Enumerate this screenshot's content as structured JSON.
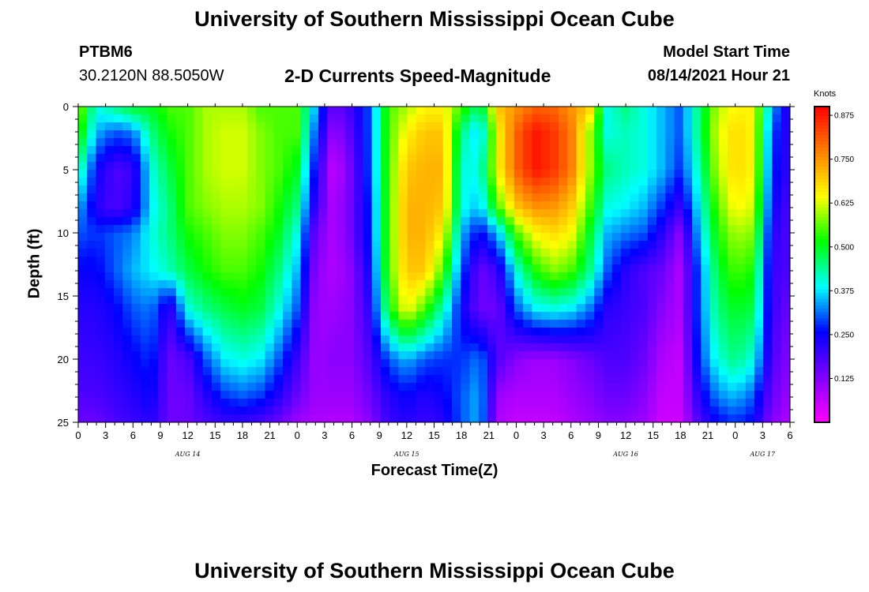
{
  "header": {
    "title": "University of Southern Mississippi Ocean Cube",
    "station_id": "PTBM6",
    "station_coords": "30.2120N  88.5050W",
    "plot_title": "2-D Currents Speed-Magnitude",
    "model_start_label": "Model Start Time",
    "model_start_value": "08/14/2021 Hour 21"
  },
  "footer": {
    "title": "University of Southern Mississippi Ocean Cube"
  },
  "chart_data": {
    "type": "heatmap",
    "xlabel": "Forecast Time(Z)",
    "ylabel": "Depth (ft)",
    "colorbar_label": "Knots",
    "x_ticks": [
      "0",
      "3",
      "6",
      "9",
      "12",
      "15",
      "18",
      "21",
      "0",
      "3",
      "6",
      "9",
      "12",
      "15",
      "18",
      "21",
      "0",
      "3",
      "6",
      "9",
      "12",
      "15",
      "18",
      "21",
      "0",
      "3",
      "6"
    ],
    "x_day_labels": [
      {
        "label": "AUG 14",
        "at_tick_index": 4
      },
      {
        "label": "AUG 15",
        "at_tick_index": 12
      },
      {
        "label": "AUG 16",
        "at_tick_index": 20
      },
      {
        "label": "AUG 17",
        "at_tick_index": 25
      }
    ],
    "y_ticks": [
      0,
      5,
      10,
      15,
      20,
      25
    ],
    "y_range": [
      0,
      25
    ],
    "y_inverted": true,
    "x_range_hours": [
      0,
      78
    ],
    "colorbar": {
      "min": 0,
      "max": 0.9,
      "ticks": [
        "0.125",
        "0.250",
        "0.375",
        "0.500",
        "0.625",
        "0.750",
        "0.875"
      ],
      "colormap": [
        "#ff00ff",
        "#8000ff",
        "#0000ff",
        "#00ffff",
        "#00ff00",
        "#ffff00",
        "#ff8000",
        "#ff0000"
      ]
    },
    "x_hours": [
      0,
      2,
      4,
      6,
      8,
      10,
      12,
      14,
      16,
      18,
      20,
      22,
      24,
      26,
      28,
      30,
      32,
      34,
      36,
      38,
      40,
      42,
      44,
      46,
      48,
      50,
      52,
      54,
      56,
      58,
      60,
      62,
      64,
      66,
      68,
      70,
      72,
      74,
      76,
      78
    ],
    "depths_ft": [
      0,
      2,
      5,
      8,
      10,
      13,
      16,
      20,
      23,
      25
    ],
    "values_knots": [
      [
        0.6,
        0.4,
        0.45,
        0.5,
        0.5,
        0.55,
        0.55,
        0.6,
        0.6,
        0.6,
        0.55,
        0.55,
        0.55,
        0.35,
        0.15,
        0.2,
        0.3,
        0.55,
        0.6,
        0.65,
        0.65,
        0.55,
        0.45,
        0.7,
        0.75,
        0.8,
        0.8,
        0.75,
        0.7,
        0.4,
        0.45,
        0.4,
        0.35,
        0.3,
        0.45,
        0.6,
        0.65,
        0.65,
        0.35,
        0.2
      ],
      [
        0.55,
        0.35,
        0.3,
        0.32,
        0.45,
        0.52,
        0.55,
        0.6,
        0.62,
        0.62,
        0.58,
        0.55,
        0.55,
        0.3,
        0.1,
        0.18,
        0.3,
        0.55,
        0.65,
        0.7,
        0.7,
        0.45,
        0.35,
        0.65,
        0.8,
        0.88,
        0.85,
        0.78,
        0.6,
        0.4,
        0.42,
        0.4,
        0.35,
        0.3,
        0.45,
        0.62,
        0.68,
        0.65,
        0.3,
        0.2
      ],
      [
        0.45,
        0.25,
        0.18,
        0.2,
        0.4,
        0.48,
        0.55,
        0.6,
        0.62,
        0.62,
        0.58,
        0.55,
        0.5,
        0.25,
        0.05,
        0.15,
        0.3,
        0.55,
        0.7,
        0.72,
        0.72,
        0.4,
        0.4,
        0.65,
        0.8,
        0.88,
        0.85,
        0.78,
        0.6,
        0.45,
        0.42,
        0.4,
        0.35,
        0.28,
        0.42,
        0.6,
        0.68,
        0.65,
        0.28,
        0.2
      ],
      [
        0.35,
        0.22,
        0.18,
        0.22,
        0.38,
        0.45,
        0.55,
        0.58,
        0.6,
        0.6,
        0.58,
        0.52,
        0.45,
        0.2,
        0.08,
        0.15,
        0.28,
        0.55,
        0.72,
        0.72,
        0.7,
        0.4,
        0.35,
        0.55,
        0.7,
        0.75,
        0.75,
        0.7,
        0.55,
        0.4,
        0.38,
        0.35,
        0.28,
        0.2,
        0.38,
        0.55,
        0.65,
        0.62,
        0.25,
        0.18
      ],
      [
        0.3,
        0.28,
        0.3,
        0.32,
        0.4,
        0.45,
        0.52,
        0.55,
        0.58,
        0.58,
        0.55,
        0.5,
        0.4,
        0.15,
        0.08,
        0.15,
        0.28,
        0.55,
        0.72,
        0.72,
        0.65,
        0.35,
        0.25,
        0.35,
        0.55,
        0.65,
        0.68,
        0.65,
        0.5,
        0.35,
        0.32,
        0.3,
        0.22,
        0.12,
        0.35,
        0.52,
        0.6,
        0.58,
        0.22,
        0.18
      ],
      [
        0.25,
        0.25,
        0.3,
        0.35,
        0.38,
        0.42,
        0.48,
        0.52,
        0.55,
        0.55,
        0.52,
        0.45,
        0.35,
        0.12,
        0.08,
        0.12,
        0.25,
        0.55,
        0.7,
        0.7,
        0.55,
        0.3,
        0.15,
        0.2,
        0.4,
        0.52,
        0.58,
        0.55,
        0.45,
        0.3,
        0.22,
        0.18,
        0.15,
        0.08,
        0.3,
        0.48,
        0.55,
        0.52,
        0.2,
        0.18
      ],
      [
        0.22,
        0.22,
        0.25,
        0.3,
        0.32,
        0.2,
        0.4,
        0.45,
        0.48,
        0.5,
        0.48,
        0.4,
        0.3,
        0.1,
        0.1,
        0.12,
        0.22,
        0.5,
        0.65,
        0.55,
        0.42,
        0.25,
        0.15,
        0.15,
        0.3,
        0.38,
        0.4,
        0.38,
        0.32,
        0.22,
        0.2,
        0.18,
        0.12,
        0.08,
        0.3,
        0.45,
        0.5,
        0.48,
        0.2,
        0.15
      ],
      [
        0.2,
        0.2,
        0.22,
        0.25,
        0.28,
        0.15,
        0.18,
        0.3,
        0.38,
        0.4,
        0.38,
        0.3,
        0.2,
        0.1,
        0.12,
        0.12,
        0.18,
        0.3,
        0.35,
        0.3,
        0.28,
        0.28,
        0.32,
        0.18,
        0.12,
        0.1,
        0.1,
        0.12,
        0.15,
        0.18,
        0.18,
        0.15,
        0.08,
        0.06,
        0.28,
        0.4,
        0.45,
        0.4,
        0.18,
        0.12
      ],
      [
        0.18,
        0.18,
        0.2,
        0.22,
        0.25,
        0.15,
        0.15,
        0.22,
        0.28,
        0.3,
        0.28,
        0.22,
        0.15,
        0.1,
        0.1,
        0.1,
        0.15,
        0.22,
        0.25,
        0.22,
        0.25,
        0.3,
        0.35,
        0.1,
        0.08,
        0.08,
        0.08,
        0.1,
        0.12,
        0.15,
        0.15,
        0.12,
        0.06,
        0.06,
        0.22,
        0.32,
        0.35,
        0.3,
        0.15,
        0.1
      ],
      [
        0.15,
        0.15,
        0.18,
        0.2,
        0.22,
        0.15,
        0.15,
        0.18,
        0.2,
        0.2,
        0.18,
        0.15,
        0.1,
        0.08,
        0.08,
        0.08,
        0.12,
        0.2,
        0.22,
        0.2,
        0.22,
        0.3,
        0.35,
        0.08,
        0.06,
        0.06,
        0.06,
        0.08,
        0.1,
        0.12,
        0.12,
        0.1,
        0.05,
        0.05,
        0.18,
        0.25,
        0.28,
        0.25,
        0.12,
        0.08
      ]
    ]
  }
}
